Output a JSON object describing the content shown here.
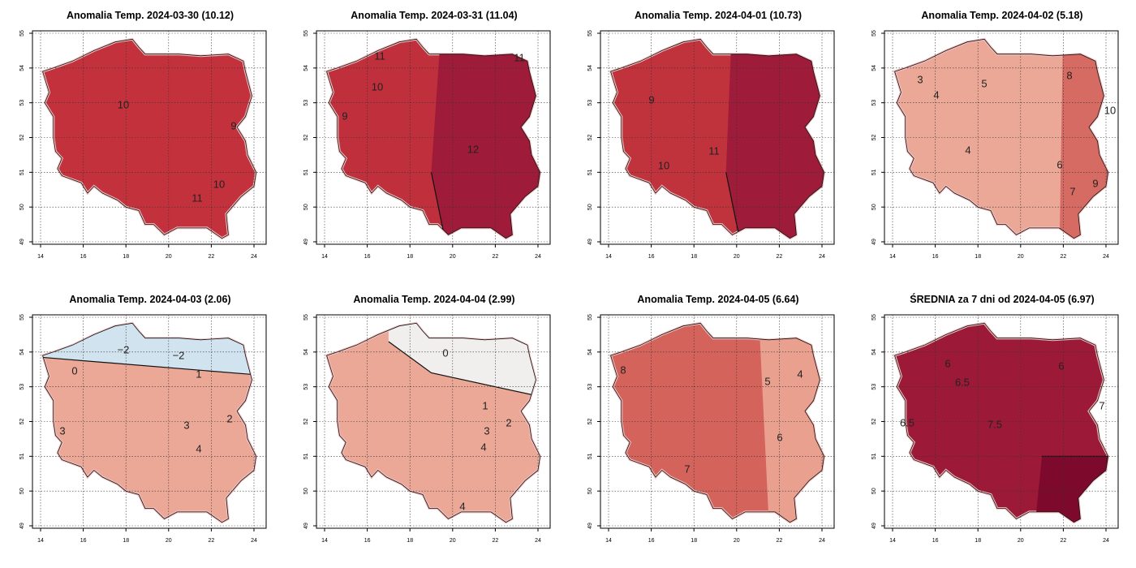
{
  "axes": {
    "x_ticks": [
      14,
      16,
      18,
      20,
      22,
      24
    ],
    "y_ticks": [
      49,
      50,
      51,
      52,
      53,
      54,
      55
    ]
  },
  "panels": [
    {
      "title": "Anomalia Temp. 2024-03-30 (10.12)",
      "fill": "#c3323c",
      "contour_labels": [
        "10",
        "11",
        "10",
        "9"
      ]
    },
    {
      "title": "Anomalia Temp. 2024-03-31 (11.04)",
      "fill": "#bf2f3c",
      "accent_fill": "#9e1b39",
      "contour_labels": [
        "11",
        "10",
        "9",
        "12",
        "11"
      ]
    },
    {
      "title": "Anomalia Temp. 2024-04-01 (10.73)",
      "fill": "#c0333d",
      "accent_fill": "#9e1b39",
      "contour_labels": [
        "9",
        "11",
        "10"
      ]
    },
    {
      "title": "Anomalia Temp. 2024-04-02 (5.18)",
      "fill": "#eba897",
      "accent_fill": "#d66b63",
      "contour_labels": [
        "3",
        "4",
        "5",
        "4",
        "8",
        "10",
        "6",
        "7",
        "9"
      ]
    },
    {
      "title": "Anomalia Temp. 2024-04-03 (2.06)",
      "fill": "#eba897",
      "accent_fill": "#d2e3f0",
      "contour_labels": [
        "−2",
        "−2",
        "0",
        "1",
        "2",
        "3",
        "4",
        "3"
      ]
    },
    {
      "title": "Anomalia Temp. 2024-04-04 (2.99)",
      "fill": "#eba897",
      "accent_fill": "#f0efee",
      "contour_labels": [
        "0",
        "1",
        "2",
        "3",
        "4",
        "4"
      ]
    },
    {
      "title": "Anomalia Temp. 2024-04-05 (6.64)",
      "fill": "#d4635b",
      "accent_fill": "#e9a08f",
      "contour_labels": [
        "8",
        "5",
        "4",
        "6",
        "7"
      ]
    },
    {
      "title": "ŚREDNIA za 7 dni od 2024-04-05 (6.97)",
      "fill": "#9c1a38",
      "accent_fill": "#7d0a2c",
      "contour_labels": [
        "6",
        "6",
        "6.5",
        "7.5",
        "7",
        "6.5"
      ]
    }
  ]
}
